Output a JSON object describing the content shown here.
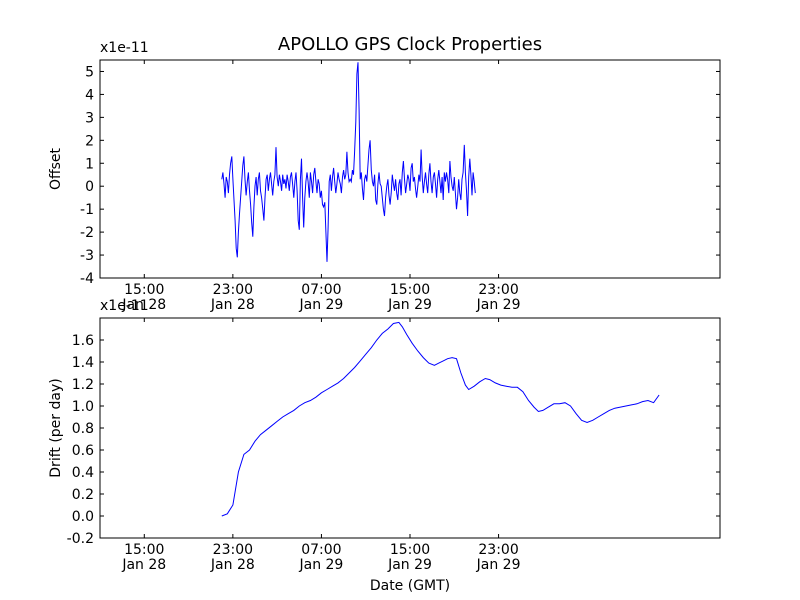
{
  "title": "APOLLO GPS Clock Properties",
  "chart_data": [
    {
      "type": "line",
      "title": "APOLLO GPS Clock Properties",
      "ylabel": "Offset",
      "xlabel": "",
      "offset_label": "x1e-11",
      "y_scale": 1e-11,
      "ylim": [
        -4,
        5.5
      ],
      "yticks": [
        -4,
        -3,
        -2,
        -1,
        0,
        1,
        2,
        3,
        4,
        5
      ],
      "xlim_hours": [
        0,
        56
      ],
      "xticks": [
        {
          "hour": 4,
          "time": "15:00",
          "date": "Jan 28"
        },
        {
          "hour": 12,
          "time": "23:00",
          "date": "Jan 28"
        },
        {
          "hour": 20,
          "time": "07:00",
          "date": "Jan 29"
        },
        {
          "hour": 28,
          "time": "15:00",
          "date": "Jan 29"
        },
        {
          "hour": 36,
          "time": "23:00",
          "date": "Jan 29"
        }
      ],
      "series": [
        {
          "color": "#0000ff",
          "x_hours_start": 11.0,
          "x_hours_step": 0.1,
          "values": [
            0.3,
            0.6,
            0.1,
            -0.5,
            0.4,
            0.2,
            -0.3,
            0.5,
            1.0,
            1.3,
            0.3,
            -0.6,
            -1.5,
            -2.7,
            -3.1,
            -2.0,
            -1.2,
            -0.5,
            0.2,
            0.9,
            1.3,
            0.3,
            -0.4,
            0.2,
            0.6,
            -0.2,
            -0.8,
            -1.6,
            -2.2,
            -0.9,
            0.0,
            0.4,
            -0.4,
            0.3,
            0.6,
            -0.2,
            -0.5,
            -1.0,
            -1.5,
            -0.5,
            0.3,
            0.5,
            -0.2,
            0.3,
            0.6,
            0.1,
            -0.4,
            0.2,
            0.5,
            1.7,
            0.4,
            0.0,
            0.5,
            0.2,
            -0.2,
            0.5,
            0.1,
            0.3,
            -0.1,
            0.5,
            0.2,
            -0.2,
            0.4,
            0.6,
            0.1,
            -0.5,
            0.2,
            0.6,
            -0.2,
            -1.5,
            -1.9,
            0.3,
            1.2,
            -0.5,
            -1.8,
            -0.5,
            0.2,
            0.6,
            0.2,
            -0.5,
            0.6,
            0.2,
            -0.3,
            0.5,
            0.8,
            0.2,
            -0.3,
            0.3,
            0.1,
            -0.5,
            -0.2,
            -0.8,
            -0.9,
            -0.7,
            -2.0,
            -3.3,
            -1.8,
            0.2,
            0.5,
            -0.2,
            0.4,
            0.8,
            0.2,
            -0.3,
            0.1,
            0.6,
            0.3,
            0.1,
            -0.3,
            0.4,
            0.7,
            0.3,
            0.5,
            1.5,
            0.6,
            0.2,
            0.3,
            0.2,
            0.7,
            0.5,
            1.5,
            2.8,
            4.9,
            5.4,
            3.3,
            0.3,
            0.6,
            -0.1,
            -0.6,
            0.3,
            0.5,
            0.2,
            0.9,
            1.6,
            2.0,
            0.7,
            0.2,
            0.0,
            0.5,
            -0.6,
            -0.8,
            0.1,
            0.6,
            0.1,
            0.0,
            -0.5,
            -1.0,
            -1.3,
            -0.5,
            0.0,
            0.3,
            -0.4,
            -0.8,
            -0.3,
            0.5,
            0.1,
            -0.2,
            0.3,
            -0.3,
            -0.6,
            0.1,
            0.3,
            -0.4,
            0.6,
            1.1,
            0.3,
            -0.3,
            0.1,
            0.5,
            0.3,
            -0.2,
            0.8,
            1.0,
            0.2,
            0.4,
            -0.1,
            -0.5,
            0.0,
            0.5,
            0.2,
            1.6,
            0.4,
            -0.3,
            0.2,
            0.6,
            0.1,
            -0.3,
            0.5,
            1.0,
            0.2,
            -0.3,
            0.4,
            0.6,
            0.1,
            -0.5,
            0.3,
            0.7,
            0.2,
            -0.3,
            0.4,
            -0.6,
            0.6,
            0.2,
            0.6,
            0.3,
            -0.3,
            1.1,
            0.4,
            0.0,
            -0.2,
            0.4,
            -0.3,
            -1.0,
            -0.5,
            0.3,
            -0.3,
            -0.6,
            0.3,
            0.6,
            1.8,
            0.6,
            -0.2,
            -1.3,
            0.4,
            1.2,
            0.5,
            -0.4,
            0.6,
            0.2,
            -0.3
          ]
        }
      ]
    },
    {
      "type": "line",
      "title": "",
      "ylabel": "Drift (per day)",
      "xlabel": "Date (GMT)",
      "offset_label": "x1e-11",
      "y_scale": 1e-11,
      "ylim": [
        -0.2,
        1.8
      ],
      "yticks": [
        -0.2,
        0.0,
        0.2,
        0.4,
        0.6,
        0.8,
        1.0,
        1.2,
        1.4,
        1.6
      ],
      "ytick_labels": [
        "-0.2",
        "0.0",
        "0.2",
        "0.4",
        "0.6",
        "0.8",
        "1.0",
        "1.2",
        "1.4",
        "1.6"
      ],
      "xlim_hours": [
        0,
        56
      ],
      "xticks": [
        {
          "hour": 4,
          "time": "15:00",
          "date": "Jan 28"
        },
        {
          "hour": 12,
          "time": "23:00",
          "date": "Jan 28"
        },
        {
          "hour": 20,
          "time": "07:00",
          "date": "Jan 29"
        },
        {
          "hour": 28,
          "time": "15:00",
          "date": "Jan 29"
        },
        {
          "hour": 36,
          "time": "23:00",
          "date": "Jan 29"
        }
      ],
      "series": [
        {
          "color": "#0000ff",
          "points": [
            [
              11.0,
              0.0
            ],
            [
              11.5,
              0.02
            ],
            [
              12.0,
              0.1
            ],
            [
              12.5,
              0.4
            ],
            [
              13.0,
              0.56
            ],
            [
              13.5,
              0.6
            ],
            [
              14.0,
              0.68
            ],
            [
              14.5,
              0.74
            ],
            [
              15.0,
              0.78
            ],
            [
              15.5,
              0.82
            ],
            [
              16.0,
              0.86
            ],
            [
              16.5,
              0.9
            ],
            [
              17.0,
              0.93
            ],
            [
              17.5,
              0.96
            ],
            [
              18.0,
              1.0
            ],
            [
              18.5,
              1.03
            ],
            [
              19.0,
              1.05
            ],
            [
              19.5,
              1.08
            ],
            [
              20.0,
              1.12
            ],
            [
              20.5,
              1.15
            ],
            [
              21.0,
              1.18
            ],
            [
              21.5,
              1.21
            ],
            [
              22.0,
              1.25
            ],
            [
              22.5,
              1.3
            ],
            [
              23.0,
              1.35
            ],
            [
              23.5,
              1.41
            ],
            [
              24.0,
              1.47
            ],
            [
              24.5,
              1.53
            ],
            [
              25.0,
              1.6
            ],
            [
              25.5,
              1.66
            ],
            [
              26.0,
              1.7
            ],
            [
              26.5,
              1.75
            ],
            [
              27.0,
              1.76
            ],
            [
              27.3,
              1.72
            ],
            [
              27.7,
              1.65
            ],
            [
              28.2,
              1.57
            ],
            [
              28.7,
              1.5
            ],
            [
              29.2,
              1.44
            ],
            [
              29.7,
              1.39
            ],
            [
              30.2,
              1.37
            ],
            [
              30.6,
              1.39
            ],
            [
              31.0,
              1.41
            ],
            [
              31.4,
              1.43
            ],
            [
              31.8,
              1.44
            ],
            [
              32.2,
              1.43
            ],
            [
              32.6,
              1.3
            ],
            [
              33.0,
              1.19
            ],
            [
              33.3,
              1.15
            ],
            [
              33.8,
              1.18
            ],
            [
              34.3,
              1.22
            ],
            [
              34.8,
              1.25
            ],
            [
              35.2,
              1.24
            ],
            [
              35.7,
              1.21
            ],
            [
              36.2,
              1.19
            ],
            [
              36.7,
              1.18
            ],
            [
              37.2,
              1.17
            ],
            [
              37.7,
              1.17
            ],
            [
              38.2,
              1.13
            ],
            [
              38.7,
              1.05
            ],
            [
              39.2,
              0.99
            ],
            [
              39.6,
              0.95
            ],
            [
              40.0,
              0.96
            ],
            [
              40.5,
              0.99
            ],
            [
              41.0,
              1.02
            ],
            [
              41.5,
              1.02
            ],
            [
              42.0,
              1.03
            ],
            [
              42.5,
              1.0
            ],
            [
              43.0,
              0.93
            ],
            [
              43.5,
              0.87
            ],
            [
              44.0,
              0.85
            ],
            [
              44.5,
              0.87
            ],
            [
              45.0,
              0.9
            ],
            [
              45.5,
              0.93
            ],
            [
              46.0,
              0.96
            ],
            [
              46.5,
              0.98
            ],
            [
              47.0,
              0.99
            ],
            [
              47.5,
              1.0
            ],
            [
              48.0,
              1.01
            ],
            [
              48.5,
              1.02
            ],
            [
              49.0,
              1.04
            ],
            [
              49.5,
              1.05
            ],
            [
              50.0,
              1.03
            ],
            [
              50.5,
              1.1
            ]
          ]
        }
      ]
    }
  ]
}
